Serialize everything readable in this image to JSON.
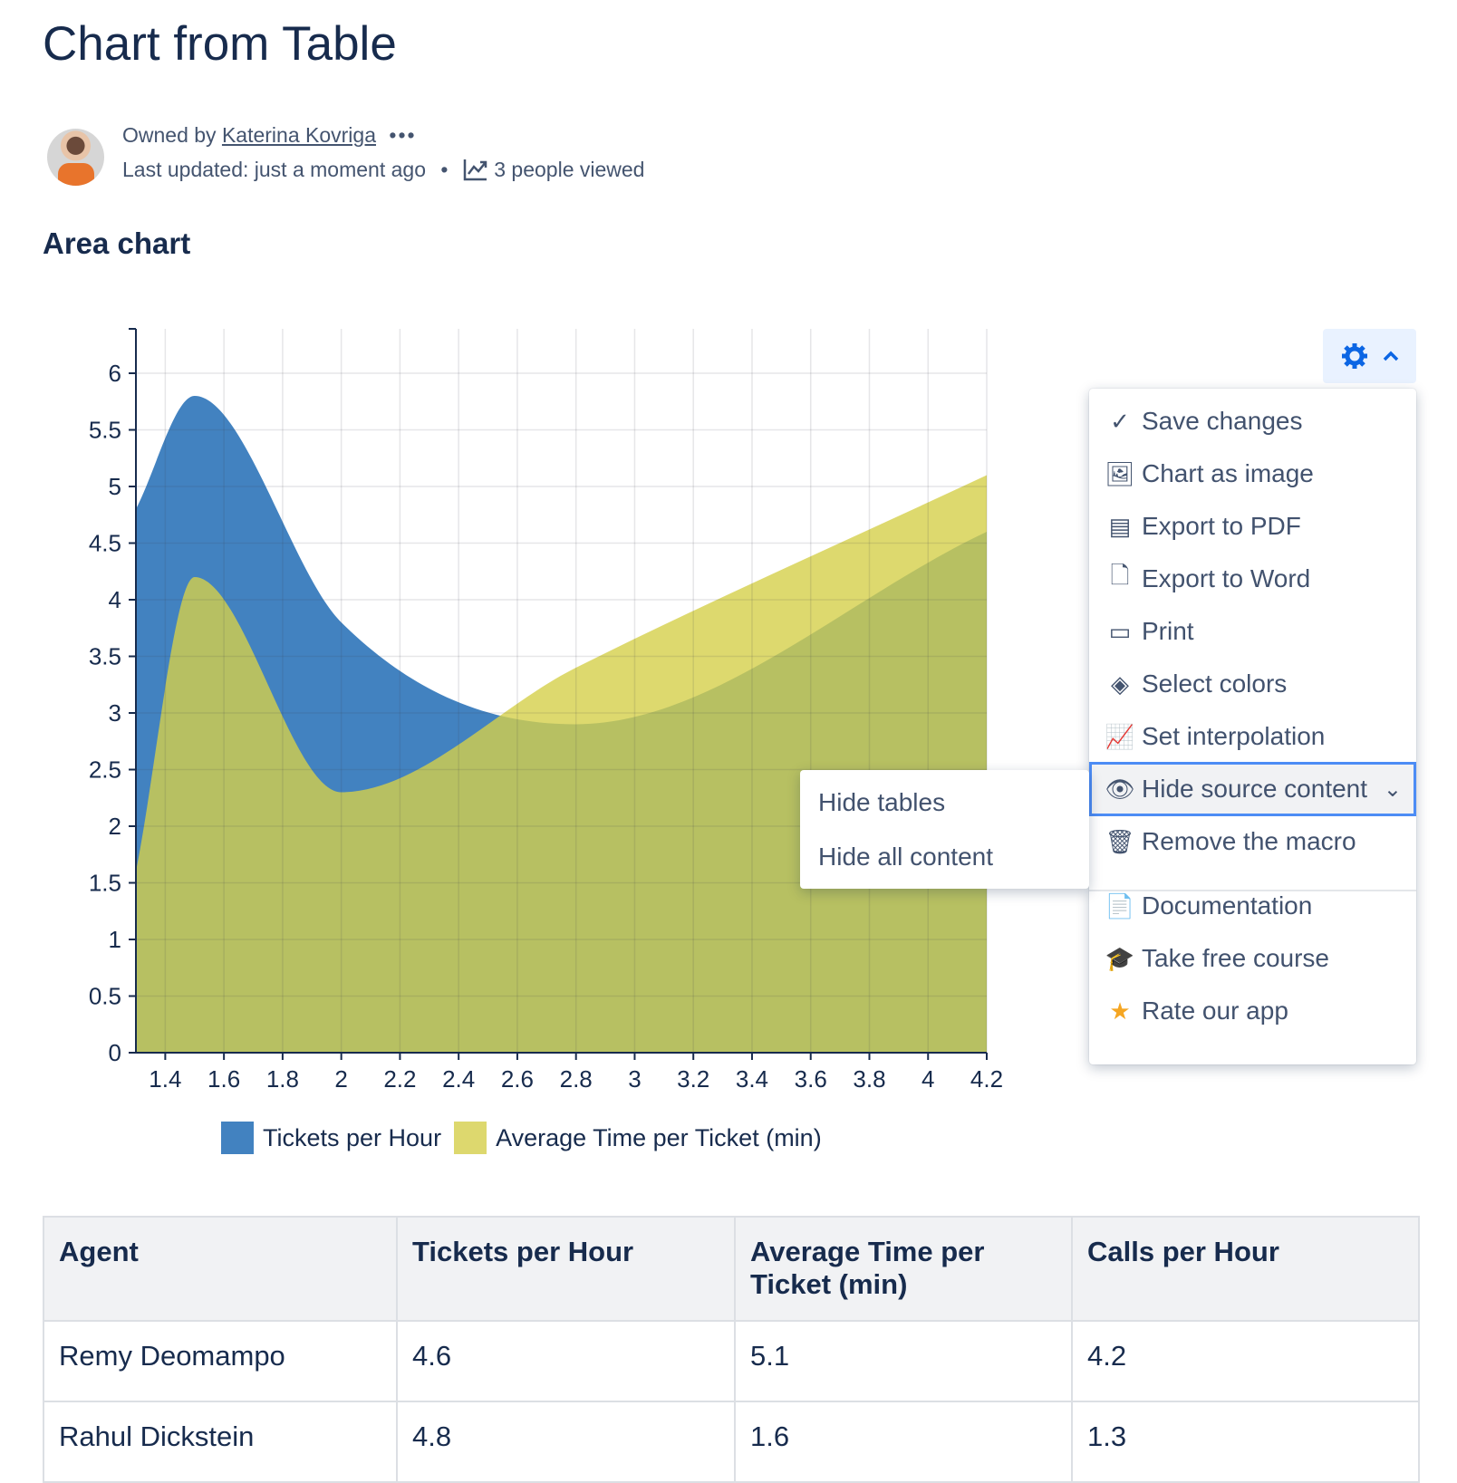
{
  "page": {
    "title": "Chart from Table",
    "owned_by_label": "Owned by",
    "owner": "Katerina Kovriga",
    "more": "•••",
    "last_updated": "Last updated: just a moment ago",
    "dot": "•",
    "views": "3 people viewed",
    "section": "Area chart"
  },
  "chart_data": {
    "type": "area",
    "x": [
      1.3,
      1.5,
      2.0,
      2.8,
      4.2
    ],
    "series": [
      {
        "name": "Tickets per Hour",
        "color": "#4282c0",
        "values": [
          4.8,
          5.8,
          3.8,
          2.9,
          4.6
        ]
      },
      {
        "name": "Average Time per Ticket (min)",
        "color": "#d4cf4a",
        "values": [
          1.6,
          4.2,
          2.3,
          3.4,
          5.1
        ]
      }
    ],
    "xlim": [
      1.3,
      4.2
    ],
    "ylim": [
      0,
      6.4
    ],
    "xticks": [
      "1.4",
      "1.6",
      "1.8",
      "2",
      "2.2",
      "2.4",
      "2.6",
      "2.8",
      "3",
      "3.2",
      "3.4",
      "3.6",
      "3.8",
      "4",
      "4.2"
    ],
    "yticks": [
      "0",
      "0.5",
      "1",
      "1.5",
      "2",
      "2.5",
      "3",
      "3.5",
      "4",
      "4.5",
      "5",
      "5.5",
      "6"
    ],
    "interpolation": "smooth",
    "grid": true,
    "legend": "bottom"
  },
  "menu": {
    "gear_icon": "gear-icon",
    "chevron": "^",
    "items": [
      {
        "icon": "✓",
        "label": "Save changes"
      },
      {
        "icon": "🖼",
        "label": "Chart as image"
      },
      {
        "icon": "▤",
        "label": "Export to PDF"
      },
      {
        "icon": "🗋",
        "label": "Export to Word"
      },
      {
        "icon": "▭",
        "label": "Print"
      },
      {
        "icon": "◈",
        "label": "Select colors"
      },
      {
        "icon": "📈",
        "label": "Set interpolation"
      },
      {
        "icon": "👁",
        "label": "Hide source content",
        "chevron": "⌄"
      },
      {
        "icon": "🗑",
        "label": "Remove the macro"
      },
      {
        "icon": "📄",
        "label": "Documentation"
      },
      {
        "icon": "🎓",
        "label": "Take free course"
      },
      {
        "icon": "★",
        "label": "Rate our app"
      }
    ],
    "submenu": [
      "Hide tables",
      "Hide all content"
    ]
  },
  "table": {
    "headers": [
      "Agent",
      "Tickets per Hour",
      "Average Time per Ticket (min)",
      "Calls per Hour"
    ],
    "rows": [
      [
        "Remy Deomampo",
        "4.6",
        "5.1",
        "4.2"
      ],
      [
        "Rahul Dickstein",
        "4.8",
        "1.6",
        "1.3"
      ]
    ]
  }
}
